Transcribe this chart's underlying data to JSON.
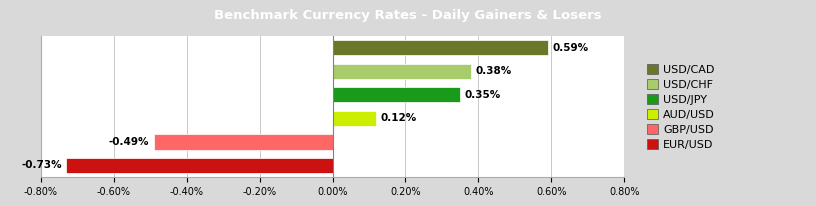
{
  "title": "Benchmark Currency Rates - Daily Gainers & Losers",
  "categories": [
    "USD/CAD",
    "USD/CHF",
    "USD/JPY",
    "AUD/USD",
    "GBP/USD",
    "EUR/USD"
  ],
  "values": [
    0.59,
    0.38,
    0.35,
    0.12,
    -0.49,
    -0.73
  ],
  "bar_colors": [
    "#6B7728",
    "#A8CC6A",
    "#1A9A1A",
    "#CCEE00",
    "#FF6666",
    "#CC1111"
  ],
  "xlim": [
    -0.8,
    0.8
  ],
  "xticks": [
    -0.8,
    -0.6,
    -0.4,
    -0.2,
    0.0,
    0.2,
    0.4,
    0.6,
    0.8
  ],
  "title_bg_color": "#7f7f7f",
  "title_font_color": "#ffffff",
  "title_fontsize": 9.5,
  "bar_label_fontsize": 7.5,
  "legend_fontsize": 8,
  "plot_bg_color": "#ffffff",
  "outer_bg_color": "#d9d9d9",
  "grid_color": "#c8c8c8"
}
